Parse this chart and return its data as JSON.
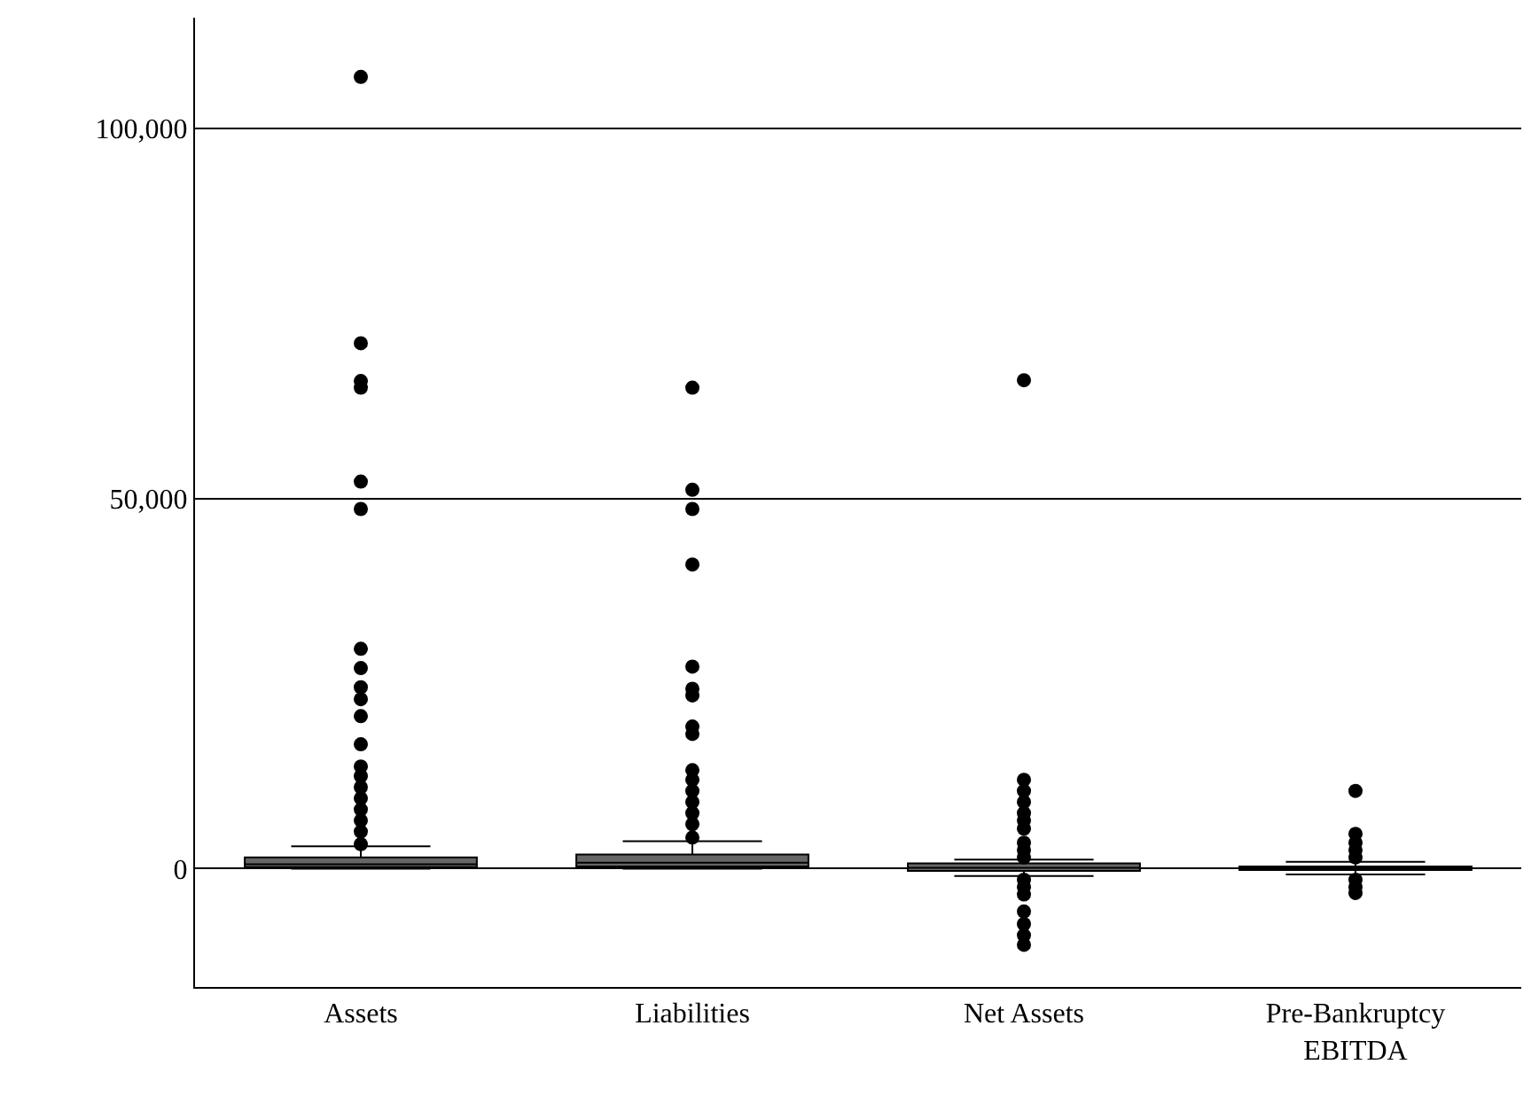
{
  "chart_data": {
    "type": "box",
    "categories": [
      "Assets",
      "Liabilities",
      "Net Assets",
      "Pre-Bankruptcy EBITDA"
    ],
    "boxes": [
      {
        "low": 0,
        "q1": 200,
        "median": 600,
        "q3": 1500,
        "high": 3000,
        "outliers": [
          107000,
          71000,
          65900,
          65000,
          52300,
          48600,
          29700,
          27100,
          24500,
          22900,
          20600,
          16800,
          13800,
          12500,
          11000,
          9500,
          8000,
          6500,
          5000,
          3300
        ]
      },
      {
        "low": 0,
        "q1": 300,
        "median": 800,
        "q3": 1900,
        "high": 3700,
        "outliers": [
          65000,
          51200,
          48600,
          41100,
          27300,
          24300,
          23400,
          19200,
          18200,
          13300,
          12000,
          10500,
          9000,
          7500,
          6000,
          4200
        ]
      },
      {
        "low": -1000,
        "q1": -300,
        "median": 100,
        "q3": 700,
        "high": 1200,
        "outliers": [
          66000,
          12000,
          10500,
          9000,
          7500,
          6500,
          5400,
          3500,
          2500,
          1500,
          -1500,
          -2500,
          -3500,
          -5800,
          -7500,
          -9000,
          -10300
        ]
      },
      {
        "low": -800,
        "q1": -200,
        "median": 50,
        "q3": 300,
        "high": 900,
        "outliers": [
          10500,
          4700,
          3500,
          2500,
          1500,
          -1500,
          -2500,
          -3300
        ]
      }
    ],
    "color": "#666666",
    "marker": "circle",
    "ylim": [
      -16000,
      115000
    ],
    "yticks": [
      0,
      {
        "value": 50000,
        "label": "50,000"
      },
      {
        "value": 100000,
        "label": "100,000"
      }
    ],
    "grid": "y"
  }
}
